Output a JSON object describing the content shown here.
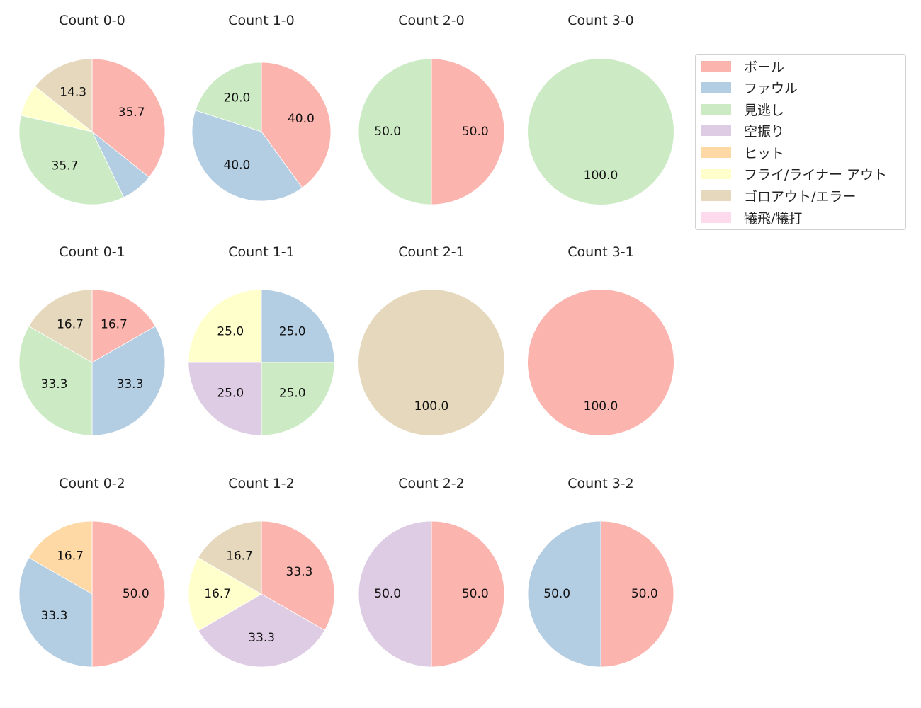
{
  "chart_data": {
    "type": "pie",
    "layout": {
      "rows": 3,
      "cols": 4,
      "start_angle_deg": 90,
      "direction": "clockwise",
      "label_format": "%.1f"
    },
    "legend": {
      "position": "upper right",
      "entries": [
        {
          "label": "ボール",
          "color": "#fbb4ae"
        },
        {
          "label": "ファウル",
          "color": "#b3cde3"
        },
        {
          "label": "見逃し",
          "color": "#ccebc5"
        },
        {
          "label": "空振り",
          "color": "#decbe4"
        },
        {
          "label": "ヒット",
          "color": "#fed9a6"
        },
        {
          "label": "フライ/ライナー アウト",
          "color": "#ffffcc"
        },
        {
          "label": "ゴロアウト/エラー",
          "color": "#e5d8bd"
        },
        {
          "label": "犠飛/犠打",
          "color": "#fddaec"
        }
      ]
    },
    "charts": [
      {
        "title": "Count 0-0",
        "row": 0,
        "col": 0,
        "radius": 103,
        "slices": [
          {
            "category": "ボール",
            "value": 35.7,
            "label": "35.7"
          },
          {
            "category": "ファウル",
            "value": 7.1,
            "label": ""
          },
          {
            "category": "見逃し",
            "value": 35.7,
            "label": "35.7"
          },
          {
            "category": "フライ/ライナー アウト",
            "value": 7.1,
            "label": ""
          },
          {
            "category": "ゴロアウト/エラー",
            "value": 14.3,
            "label": "14.3"
          }
        ]
      },
      {
        "title": "Count 1-0",
        "row": 0,
        "col": 1,
        "radius": 98,
        "slices": [
          {
            "category": "ボール",
            "value": 40.0,
            "label": "40.0"
          },
          {
            "category": "ファウル",
            "value": 40.0,
            "label": "40.0"
          },
          {
            "category": "見逃し",
            "value": 20.0,
            "label": "20.0"
          }
        ]
      },
      {
        "title": "Count 2-0",
        "row": 0,
        "col": 2,
        "radius": 103,
        "slices": [
          {
            "category": "ボール",
            "value": 50.0,
            "label": "50.0"
          },
          {
            "category": "見逃し",
            "value": 50.0,
            "label": "50.0"
          }
        ]
      },
      {
        "title": "Count 3-0",
        "row": 0,
        "col": 3,
        "radius": 103,
        "slices": [
          {
            "category": "見逃し",
            "value": 100.0,
            "label": "100.0"
          }
        ]
      },
      {
        "title": "Count 0-1",
        "row": 1,
        "col": 0,
        "radius": 103,
        "slices": [
          {
            "category": "ボール",
            "value": 16.7,
            "label": "16.7"
          },
          {
            "category": "ファウル",
            "value": 33.3,
            "label": "33.3"
          },
          {
            "category": "見逃し",
            "value": 33.3,
            "label": "33.3"
          },
          {
            "category": "ゴロアウト/エラー",
            "value": 16.7,
            "label": "16.7"
          }
        ]
      },
      {
        "title": "Count 1-1",
        "row": 1,
        "col": 1,
        "radius": 103,
        "slices": [
          {
            "category": "ファウル",
            "value": 25.0,
            "label": "25.0"
          },
          {
            "category": "見逃し",
            "value": 25.0,
            "label": "25.0"
          },
          {
            "category": "空振り",
            "value": 25.0,
            "label": "25.0"
          },
          {
            "category": "フライ/ライナー アウト",
            "value": 25.0,
            "label": "25.0"
          }
        ]
      },
      {
        "title": "Count 2-1",
        "row": 1,
        "col": 2,
        "radius": 103,
        "slices": [
          {
            "category": "ゴロアウト/エラー",
            "value": 100.0,
            "label": "100.0"
          }
        ]
      },
      {
        "title": "Count 3-1",
        "row": 1,
        "col": 3,
        "radius": 103,
        "slices": [
          {
            "category": "ボール",
            "value": 100.0,
            "label": "100.0"
          }
        ]
      },
      {
        "title": "Count 0-2",
        "row": 2,
        "col": 0,
        "radius": 103,
        "slices": [
          {
            "category": "ボール",
            "value": 50.0,
            "label": "50.0"
          },
          {
            "category": "ファウル",
            "value": 33.3,
            "label": "33.3"
          },
          {
            "category": "ヒット",
            "value": 16.7,
            "label": "16.7"
          }
        ]
      },
      {
        "title": "Count 1-2",
        "row": 2,
        "col": 1,
        "radius": 103,
        "slices": [
          {
            "category": "ボール",
            "value": 33.3,
            "label": "33.3"
          },
          {
            "category": "空振り",
            "value": 33.3,
            "label": "33.3"
          },
          {
            "category": "フライ/ライナー アウト",
            "value": 16.7,
            "label": "16.7"
          },
          {
            "category": "ゴロアウト/エラー",
            "value": 16.7,
            "label": "16.7"
          }
        ]
      },
      {
        "title": "Count 2-2",
        "row": 2,
        "col": 2,
        "radius": 103,
        "slices": [
          {
            "category": "ボール",
            "value": 50.0,
            "label": "50.0"
          },
          {
            "category": "空振り",
            "value": 50.0,
            "label": "50.0"
          }
        ]
      },
      {
        "title": "Count 3-2",
        "row": 2,
        "col": 3,
        "radius": 103,
        "slices": [
          {
            "category": "ボール",
            "value": 50.0,
            "label": "50.0"
          },
          {
            "category": "ファウル",
            "value": 50.0,
            "label": "50.0"
          }
        ]
      }
    ]
  }
}
